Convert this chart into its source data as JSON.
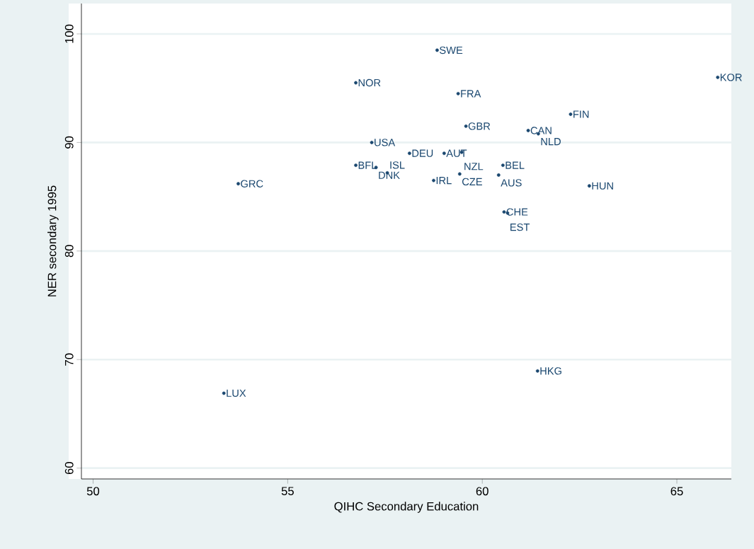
{
  "chart_data": {
    "type": "scatter",
    "xlabel": "QIHC Secondary Education",
    "ylabel": "NER secondary 1995",
    "color": "#1a476f",
    "marker": "circle",
    "grid": "y",
    "xlim": [
      49.7,
      66.4
    ],
    "ylim": [
      59,
      102.8
    ],
    "xticks": [
      50,
      55,
      60,
      65
    ],
    "yticks": [
      60,
      70,
      80,
      90,
      100
    ],
    "x": [
      58.84,
      56.75,
      66.05,
      59.38,
      62.27,
      59.58,
      61.18,
      61.44,
      57.16,
      58.13,
      59.02,
      59.47,
      56.75,
      57.27,
      57.56,
      58.75,
      59.42,
      60.53,
      60.42,
      62.75,
      53.73,
      60.56,
      60.65,
      61.42,
      53.36
    ],
    "values": [
      98.5,
      95.5,
      96.0,
      94.5,
      92.6,
      91.5,
      91.1,
      90.8,
      90.0,
      89.0,
      89.0,
      89.1,
      87.9,
      87.7,
      87.2,
      86.5,
      87.1,
      87.9,
      87.0,
      86.0,
      86.2,
      83.6,
      83.5,
      68.95,
      66.9
    ],
    "annotations": [
      {
        "text": "SWE",
        "x": 58.84,
        "y": 98.5
      },
      {
        "text": "NOR",
        "x": 56.75,
        "y": 95.5
      },
      {
        "text": "KOR",
        "x": 66.05,
        "y": 96.0
      },
      {
        "text": "FRA",
        "x": 59.38,
        "y": 94.5
      },
      {
        "text": "FIN",
        "x": 62.27,
        "y": 92.6
      },
      {
        "text": "GBR",
        "x": 59.58,
        "y": 91.5
      },
      {
        "text": "CAN",
        "x": 61.18,
        "y": 91.1
      },
      {
        "text": "NLD",
        "x": 61.44,
        "y": 90.8
      },
      {
        "text": "USA",
        "x": 57.16,
        "y": 90.0
      },
      {
        "text": "DEU",
        "x": 58.13,
        "y": 89.0
      },
      {
        "text": "AUT",
        "x": 59.02,
        "y": 89.0
      },
      {
        "text": "NZL",
        "x": 59.47,
        "y": 89.1
      },
      {
        "text": "BFL",
        "x": 56.75,
        "y": 87.9
      },
      {
        "text": "DNK",
        "x": 57.27,
        "y": 87.7
      },
      {
        "text": "ISL",
        "x": 57.56,
        "y": 87.2
      },
      {
        "text": "IRL",
        "x": 58.75,
        "y": 86.5
      },
      {
        "text": "CZE",
        "x": 59.42,
        "y": 87.1
      },
      {
        "text": "BEL",
        "x": 60.53,
        "y": 87.9
      },
      {
        "text": "AUS",
        "x": 60.42,
        "y": 87.0
      },
      {
        "text": "HUN",
        "x": 62.75,
        "y": 86.0
      },
      {
        "text": "GRC",
        "x": 53.73,
        "y": 86.2
      },
      {
        "text": "CHE",
        "x": 60.56,
        "y": 83.6
      },
      {
        "text": "EST",
        "x": 60.65,
        "y": 83.5
      },
      {
        "text": "HKG",
        "x": 61.42,
        "y": 68.95
      },
      {
        "text": "LUX",
        "x": 53.36,
        "y": 66.9
      }
    ]
  }
}
